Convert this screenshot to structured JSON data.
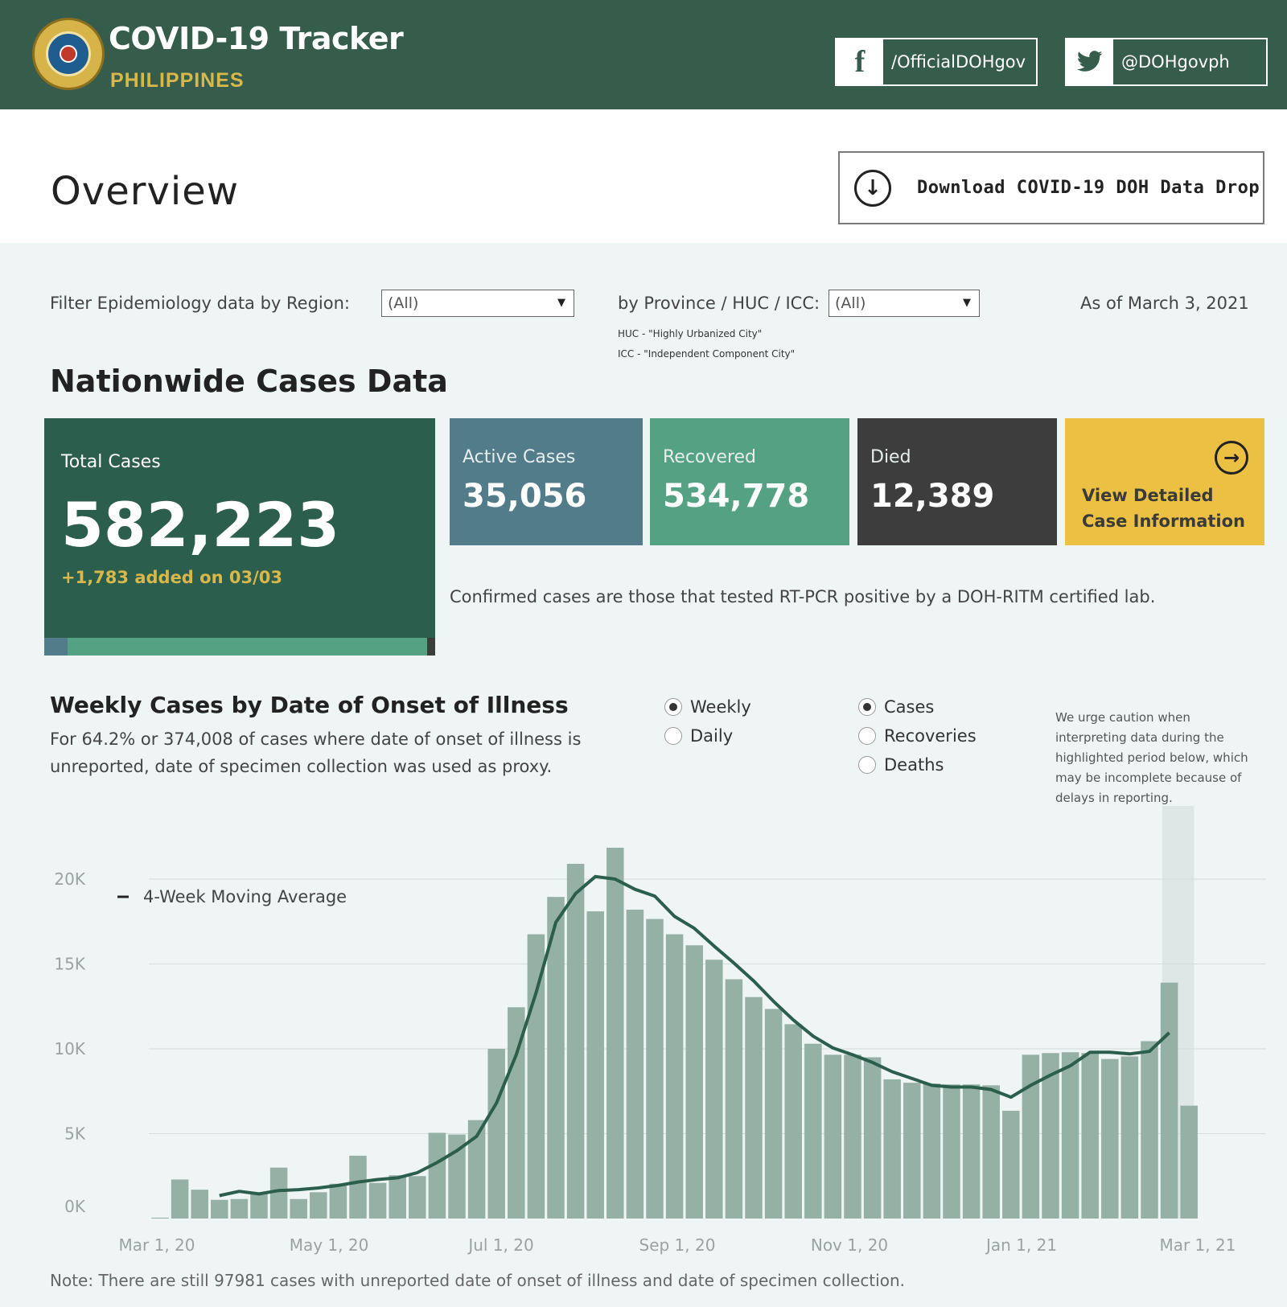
{
  "header": {
    "title": "COVID-19 Tracker",
    "subtitle": "PHILIPPINES",
    "facebook_handle": "/OfficialDOHgov",
    "twitter_handle": "@DOHgovph",
    "facebook_icon": "f",
    "twitter_icon": "❦"
  },
  "overview": {
    "title": "Overview",
    "download_label": "Download COVID-19 DOH Data Drop"
  },
  "filters": {
    "region_label": "Filter Epidemiology data by Region:",
    "region_value": "(All)",
    "province_label": "by Province / HUC / ICC:",
    "province_value": "(All)",
    "huc_note": "HUC - \"Highly Urbanized City\"",
    "icc_note": "ICC - \"Independent Component City\"",
    "as_of": "As of March 3, 2021"
  },
  "cases": {
    "section_title": "Nationwide Cases Data",
    "total_label": "Total Cases",
    "total_value": "582,223",
    "added": "+1,783 added on 03/03",
    "active_label": "Active Cases",
    "active_value": "35,056",
    "recovered_label": "Recovered",
    "recovered_value": "534,778",
    "died_label": "Died",
    "died_value": "12,389",
    "detail_label": "View Detailed Case Information",
    "confirmed_note": "Confirmed cases are those that tested RT-PCR positive by a DOH-RITM certified lab.",
    "colors": {
      "total": "#2c5e4d",
      "active": "#527c8a",
      "recovered": "#54a283",
      "died": "#3d3d3d",
      "detail": "#ebc043",
      "accent": "#d8b84a"
    },
    "bar_shares": {
      "active": 0.0602,
      "recovered": 0.9185,
      "died": 0.0213
    }
  },
  "weekly": {
    "title": "Weekly Cases by Date of Onset of Illness",
    "description": "For 64.2% or 374,008 of cases where date of onset of illness is unreported, date of specimen collection was used as proxy.",
    "interval_options": [
      {
        "label": "Weekly",
        "selected": true
      },
      {
        "label": "Daily",
        "selected": false
      }
    ],
    "measure_options": [
      {
        "label": "Cases",
        "selected": true
      },
      {
        "label": "Recoveries",
        "selected": false
      },
      {
        "label": "Deaths",
        "selected": false
      }
    ],
    "caution": "We urge caution when interpreting data during the highlighted period below, which may be incomplete because of delays in reporting.",
    "note": "Note: There are still 97981 cases with unreported date of onset of illness and date of specimen collection."
  },
  "chart_data": {
    "type": "bar",
    "legend": "4-Week Moving Average",
    "legend_placement": "top-left",
    "grid": true,
    "ylim": [
      0,
      22000
    ],
    "y_ticks": [
      {
        "value": 0,
        "label": "0K"
      },
      {
        "value": 5000,
        "label": "5K"
      },
      {
        "value": 10000,
        "label": "10K"
      },
      {
        "value": 15000,
        "label": "15K"
      },
      {
        "value": 20000,
        "label": "20K"
      }
    ],
    "x_ticks": [
      {
        "week": 0,
        "label": "Mar 1, 20"
      },
      {
        "week": 8.7,
        "label": "May 1, 20"
      },
      {
        "week": 17.4,
        "label": "Jul 1, 20"
      },
      {
        "week": 26.3,
        "label": "Sep 1, 20"
      },
      {
        "week": 35.0,
        "label": "Nov 1, 20"
      },
      {
        "week": 43.7,
        "label": "Jan 1, 21"
      },
      {
        "week": 52.6,
        "label": "Mar 1, 21"
      }
    ],
    "bar_color": "#95b0a4",
    "line_color": "#2c5e4d",
    "highlight_weeks": [
      50.6,
      52.2
    ],
    "weekly_cases": [
      50,
      2300,
      1700,
      1100,
      1150,
      1450,
      3000,
      1150,
      1550,
      2050,
      3700,
      2100,
      2550,
      2500,
      5050,
      4950,
      5800,
      10000,
      12450,
      16750,
      18950,
      20900,
      18100,
      21850,
      18200,
      17650,
      16750,
      16100,
      15250,
      14100,
      13050,
      12350,
      11450,
      10300,
      9650,
      9650,
      9500,
      8200,
      8000,
      7950,
      7900,
      7900,
      7850,
      6350,
      9650,
      9750,
      9800,
      9750,
      9400,
      9550,
      10450,
      13900,
      6650
    ],
    "moving_average": [
      null,
      null,
      null,
      1350,
      1600,
      1450,
      1650,
      1700,
      1800,
      1950,
      2150,
      2300,
      2400,
      2700,
      3300,
      4000,
      4850,
      6800,
      9650,
      13300,
      17450,
      19150,
      20150,
      20000,
      19400,
      19000,
      17800,
      17100,
      16050,
      15050,
      14000,
      12800,
      11700,
      10750,
      10050,
      9650,
      9200,
      8650,
      8250,
      7850,
      7750,
      7750,
      7600,
      7150,
      7850,
      8450,
      9000,
      9800,
      9800,
      9700,
      9850,
      10950,
      null
    ]
  }
}
